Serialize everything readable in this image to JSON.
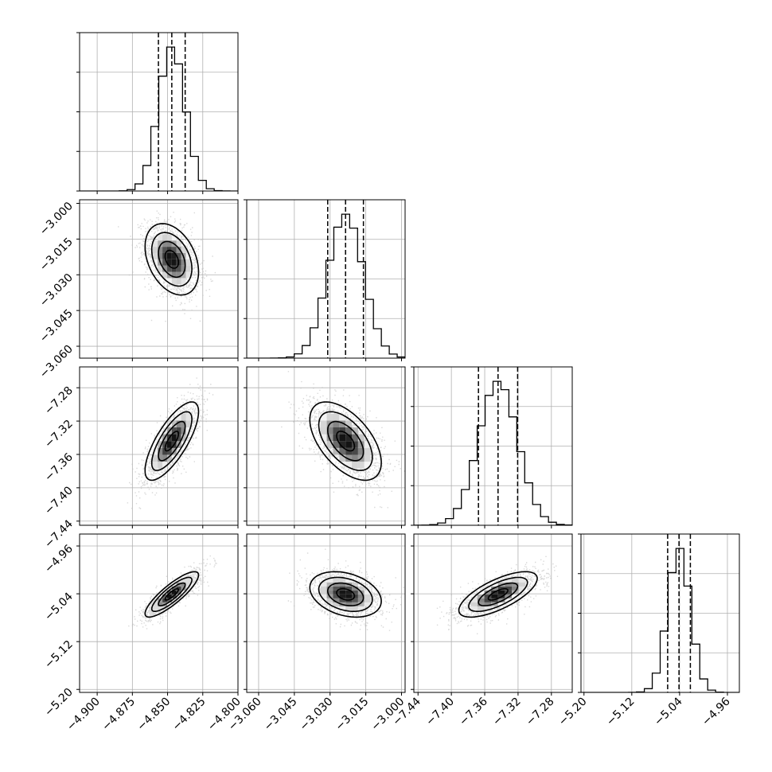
{
  "chart_data": {
    "type": "corner",
    "description_free": true,
    "n_params": 4,
    "grid": true,
    "colors": {
      "line": "#000000",
      "grid": "#b0b0b0",
      "scatter": "#bfbfbf"
    },
    "params": [
      {
        "range": [
          -4.9125,
          -4.8
        ],
        "ticks": [
          -4.9,
          -4.875,
          -4.85,
          -4.825,
          -4.8
        ],
        "tick_labels": [
          "−4.900",
          "−4.875",
          "−4.850",
          "−4.825",
          "−4.800"
        ],
        "mean": -4.847,
        "sd": 0.0095,
        "quantiles": [
          -4.8565,
          -4.847,
          -4.8375
        ]
      },
      {
        "range": [
          -3.065,
          -2.9985
        ],
        "ticks": [
          -3.06,
          -3.045,
          -3.03,
          -3.015,
          -3.0
        ],
        "tick_labels": [
          "−3.060",
          "−3.045",
          "−3.030",
          "−3.015",
          "−3.000"
        ],
        "mean": -3.0235,
        "sd": 0.0075,
        "quantiles": [
          -3.031,
          -3.0235,
          -3.016
        ]
      },
      {
        "range": [
          -7.445,
          -7.255
        ],
        "ticks": [
          -7.44,
          -7.4,
          -7.36,
          -7.32,
          -7.28
        ],
        "tick_labels": [
          "−7.44",
          "−7.40",
          "−7.36",
          "−7.32",
          "−7.28"
        ],
        "mean": -7.344,
        "sd": 0.0235,
        "quantiles": [
          -7.3675,
          -7.344,
          -7.3205
        ]
      },
      {
        "range": [
          -5.205,
          -4.94
        ],
        "ticks": [
          -5.2,
          -5.12,
          -5.04,
          -4.96
        ],
        "tick_labels": [
          "−5.20",
          "−5.12",
          "−5.04",
          "−4.96"
        ],
        "mean": -5.041,
        "sd": 0.019,
        "quantiles": [
          -5.06,
          -5.041,
          -5.022
        ]
      }
    ],
    "correlations": [
      [
        1.0,
        -0.35,
        0.75,
        0.85
      ],
      [
        -0.35,
        1.0,
        -0.55,
        -0.3
      ],
      [
        0.75,
        -0.55,
        1.0,
        0.7
      ],
      [
        0.85,
        -0.3,
        0.7,
        1.0
      ]
    ]
  }
}
